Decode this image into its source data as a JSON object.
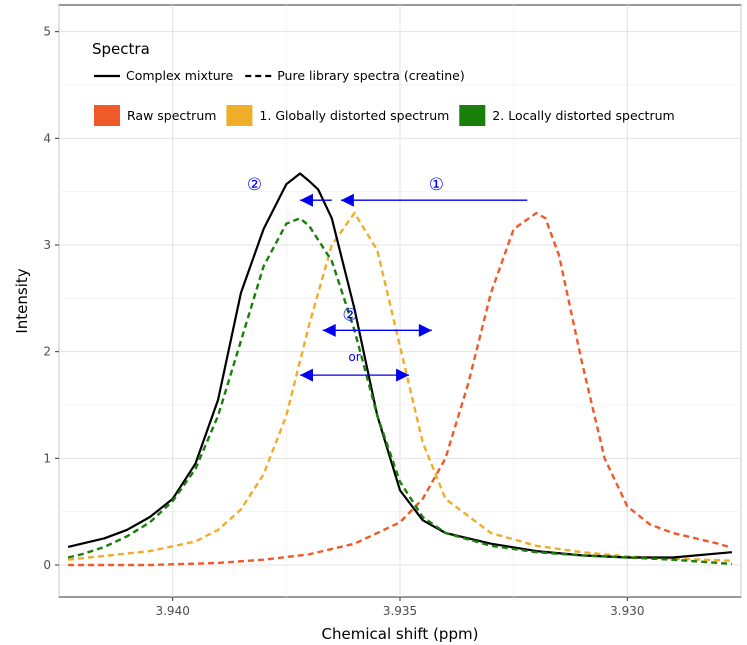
{
  "chart_data": {
    "type": "line",
    "xlabel": "Chemical shift (ppm)",
    "ylabel": "Intensity",
    "xlim": [
      3.9275,
      3.9425
    ],
    "x_reversed": true,
    "ylim": [
      -0.3,
      5.25
    ],
    "x_ticks": [
      3.94,
      3.935,
      3.93
    ],
    "x_tick_labels": [
      "3.940",
      "3.935",
      "3.930"
    ],
    "y_ticks": [
      0,
      1,
      2,
      3,
      4,
      5
    ],
    "y_tick_labels": [
      "0",
      "1",
      "2",
      "3",
      "4",
      "5"
    ],
    "grid": true,
    "legend": {
      "title": "Spectra",
      "placement": "top-left",
      "linetype_entries": [
        "Complex mixture",
        "Pure library spectra (creatine)"
      ],
      "color_entries": [
        {
          "label": "Raw spectrum",
          "color": "#f05a28"
        },
        {
          "label": "1. Globally distorted spectrum",
          "color": "#f0ad28"
        },
        {
          "label": "2. Locally distorted spectrum",
          "color": "#1a7f0a"
        }
      ]
    },
    "series": [
      {
        "name": "Complex mixture",
        "style": "solid",
        "color": "#000000",
        "x": [
          3.9423,
          3.942,
          3.9415,
          3.941,
          3.9405,
          3.94,
          3.9395,
          3.939,
          3.9385,
          3.938,
          3.9375,
          3.9372,
          3.937,
          3.9368,
          3.9365,
          3.936,
          3.9355,
          3.935,
          3.9345,
          3.934,
          3.933,
          3.932,
          3.931,
          3.93,
          3.929,
          3.9277
        ],
        "y": [
          0.17,
          0.2,
          0.25,
          0.33,
          0.45,
          0.62,
          0.95,
          1.55,
          2.55,
          3.15,
          3.57,
          3.67,
          3.6,
          3.52,
          3.25,
          2.4,
          1.4,
          0.7,
          0.42,
          0.3,
          0.2,
          0.13,
          0.09,
          0.07,
          0.07,
          0.12
        ]
      },
      {
        "name": "Pure library spectra (creatine) - Raw spectrum",
        "style": "dashed",
        "color": "#f05a28",
        "x": [
          3.9423,
          3.9405,
          3.939,
          3.938,
          3.937,
          3.936,
          3.935,
          3.9345,
          3.934,
          3.9335,
          3.933,
          3.9325,
          3.932,
          3.9318,
          3.9315,
          3.931,
          3.9305,
          3.93,
          3.9295,
          3.929,
          3.928,
          3.9277
        ],
        "y": [
          0.0,
          0.0,
          0.02,
          0.05,
          0.1,
          0.2,
          0.4,
          0.62,
          1.0,
          1.7,
          2.55,
          3.15,
          3.3,
          3.25,
          2.9,
          1.9,
          1.0,
          0.55,
          0.38,
          0.3,
          0.2,
          0.16
        ]
      },
      {
        "name": "Pure library spectra (creatine) - 1. Globally distorted spectrum",
        "style": "dashed",
        "color": "#f0ad28",
        "x": [
          3.9423,
          3.9405,
          3.9395,
          3.939,
          3.9385,
          3.938,
          3.9375,
          3.937,
          3.9365,
          3.936,
          3.9355,
          3.935,
          3.9345,
          3.934,
          3.933,
          3.932,
          3.931,
          3.93,
          3.929,
          3.9277
        ],
        "y": [
          0.05,
          0.13,
          0.22,
          0.33,
          0.52,
          0.85,
          1.4,
          2.25,
          3.0,
          3.3,
          2.95,
          2.05,
          1.15,
          0.62,
          0.3,
          0.18,
          0.12,
          0.08,
          0.06,
          0.04
        ]
      },
      {
        "name": "Pure library spectra (creatine) - 2. Locally distorted spectrum",
        "style": "dashed",
        "color": "#1a7f0a",
        "x": [
          3.9423,
          3.942,
          3.9415,
          3.941,
          3.9405,
          3.94,
          3.9395,
          3.939,
          3.9385,
          3.938,
          3.9375,
          3.9372,
          3.937,
          3.9365,
          3.936,
          3.9355,
          3.935,
          3.9345,
          3.934,
          3.933,
          3.932,
          3.931,
          3.93,
          3.929,
          3.9277
        ],
        "y": [
          0.07,
          0.1,
          0.17,
          0.27,
          0.4,
          0.6,
          0.9,
          1.4,
          2.1,
          2.8,
          3.2,
          3.25,
          3.18,
          2.85,
          2.2,
          1.4,
          0.78,
          0.45,
          0.3,
          0.18,
          0.12,
          0.09,
          0.07,
          0.05,
          0.01
        ]
      }
    ],
    "annotations": [
      {
        "label": "①",
        "type": "arrow-left",
        "x_from": 3.9322,
        "x_to": 3.9363,
        "y": 3.42,
        "label_x": 3.9342,
        "label_y": 3.57
      },
      {
        "label": "②",
        "type": "arrow-left",
        "x_from": 3.9365,
        "x_to": 3.9372,
        "y": 3.42,
        "label_x": 3.9382,
        "label_y": 3.57
      },
      {
        "label": "②",
        "type": "arrow-both",
        "x_from": 3.9367,
        "x_to": 3.9343,
        "y": 2.2,
        "label_x": 3.9361,
        "label_y": 2.35
      },
      {
        "label": "or",
        "type": "arrow-both",
        "x_from": 3.9372,
        "x_to": 3.9348,
        "y": 1.78,
        "label_x": 3.936,
        "label_y": 1.97
      }
    ]
  }
}
